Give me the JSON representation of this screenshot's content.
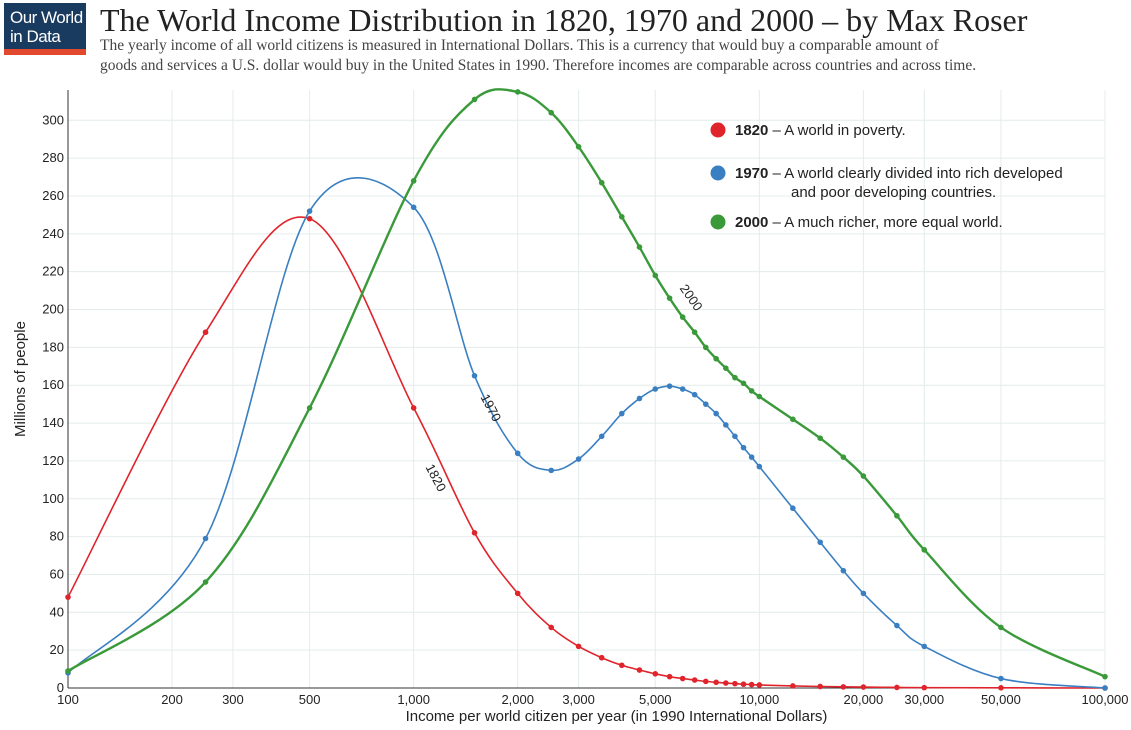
{
  "logo": {
    "line1": "Our World",
    "line2": "in Data"
  },
  "header": {
    "title": "The World Income Distribution in 1820, 1970 and 2000 – by Max Roser",
    "subtitle_line1": "The yearly income of all world citizens is measured in International Dollars. This is a currency that would buy a comparable amount of",
    "subtitle_line2": "goods and services a U.S. dollar would buy in the United States in 1990. Therefore incomes are comparable across countries and across time."
  },
  "colors": {
    "s1820": "#e0242b",
    "s1970": "#3a7fc1",
    "s2000": "#3a9a3a",
    "grid": "#e4ecec",
    "axis": "#333333"
  },
  "chart_data": {
    "type": "line",
    "title": "The World Income Distribution in 1820, 1970 and 2000",
    "xlabel": "Income per world citizen per year (in 1990 International Dollars)",
    "ylabel": "Millions of people",
    "xscale": "log",
    "xlim": [
      100,
      100000
    ],
    "ylim": [
      0,
      316
    ],
    "grid": true,
    "xticks": [
      {
        "value": 100,
        "label": "100"
      },
      {
        "value": 200,
        "label": "200"
      },
      {
        "value": 300,
        "label": "300"
      },
      {
        "value": 500,
        "label": "500"
      },
      {
        "value": 1000,
        "label": "1,000"
      },
      {
        "value": 2000,
        "label": "2,000"
      },
      {
        "value": 3000,
        "label": "3,000"
      },
      {
        "value": 5000,
        "label": "5,000"
      },
      {
        "value": 10000,
        "label": "10,000"
      },
      {
        "value": 20000,
        "label": "20,000"
      },
      {
        "value": 30000,
        "label": "30,000"
      },
      {
        "value": 50000,
        "label": "50,000"
      },
      {
        "value": 100000,
        "label": "100,000"
      }
    ],
    "yticks": [
      0,
      20,
      40,
      60,
      80,
      100,
      120,
      140,
      160,
      180,
      200,
      220,
      240,
      260,
      280,
      300
    ],
    "legend_position": "top-right",
    "series": [
      {
        "name": "1820",
        "key": "s1820",
        "legend_year": "1820",
        "legend_text": " – A world in poverty.",
        "legend_text2": "",
        "curve_label": "1820",
        "points": [
          [
            100,
            48
          ],
          [
            250,
            188
          ],
          [
            500,
            248
          ],
          [
            1000,
            148
          ],
          [
            1500,
            82
          ],
          [
            2000,
            50
          ],
          [
            2500,
            32
          ],
          [
            3000,
            22
          ],
          [
            3500,
            16
          ],
          [
            4000,
            12
          ],
          [
            4500,
            9.5
          ],
          [
            5000,
            7.5
          ],
          [
            5500,
            6
          ],
          [
            6000,
            5
          ],
          [
            6500,
            4.2
          ],
          [
            7000,
            3.5
          ],
          [
            7500,
            3
          ],
          [
            8000,
            2.6
          ],
          [
            8500,
            2.3
          ],
          [
            9000,
            2
          ],
          [
            9500,
            1.8
          ],
          [
            10000,
            1.6
          ],
          [
            12500,
            1.1
          ],
          [
            15000,
            0.8
          ],
          [
            17500,
            0.6
          ],
          [
            20000,
            0.5
          ],
          [
            25000,
            0.3
          ],
          [
            30000,
            0.2
          ],
          [
            50000,
            0.1
          ],
          [
            100000,
            0
          ]
        ]
      },
      {
        "name": "1970",
        "key": "s1970",
        "legend_year": "1970",
        "legend_text": " – A world clearly divided into rich developed",
        "legend_text2": "and poor developing countries.",
        "curve_label": "1970",
        "points": [
          [
            100,
            8
          ],
          [
            250,
            79
          ],
          [
            500,
            252
          ],
          [
            1000,
            254
          ],
          [
            1500,
            165
          ],
          [
            2000,
            124
          ],
          [
            2500,
            115
          ],
          [
            3000,
            121
          ],
          [
            3500,
            133
          ],
          [
            4000,
            145
          ],
          [
            4500,
            153
          ],
          [
            5000,
            158
          ],
          [
            5500,
            159.5
          ],
          [
            6000,
            158
          ],
          [
            6500,
            155
          ],
          [
            7000,
            150
          ],
          [
            7500,
            145
          ],
          [
            8000,
            139
          ],
          [
            8500,
            133
          ],
          [
            9000,
            127
          ],
          [
            9500,
            122
          ],
          [
            10000,
            117
          ],
          [
            12500,
            95
          ],
          [
            15000,
            77
          ],
          [
            17500,
            62
          ],
          [
            20000,
            50
          ],
          [
            25000,
            33
          ],
          [
            30000,
            22
          ],
          [
            50000,
            5
          ],
          [
            100000,
            0
          ]
        ]
      },
      {
        "name": "2000",
        "key": "s2000",
        "legend_year": "2000",
        "legend_text": " – A much richer, more equal world.",
        "legend_text2": "",
        "curve_label": "2000",
        "points": [
          [
            100,
            9
          ],
          [
            250,
            56
          ],
          [
            500,
            148
          ],
          [
            1000,
            268
          ],
          [
            1500,
            311
          ],
          [
            2000,
            315
          ],
          [
            2500,
            304
          ],
          [
            3000,
            286
          ],
          [
            3500,
            267
          ],
          [
            4000,
            249
          ],
          [
            4500,
            233
          ],
          [
            5000,
            218
          ],
          [
            5500,
            206
          ],
          [
            6000,
            196
          ],
          [
            6500,
            188
          ],
          [
            7000,
            180
          ],
          [
            7500,
            174
          ],
          [
            8000,
            169
          ],
          [
            8500,
            164
          ],
          [
            9000,
            161
          ],
          [
            9500,
            157
          ],
          [
            10000,
            154
          ],
          [
            12500,
            142
          ],
          [
            15000,
            132
          ],
          [
            17500,
            122
          ],
          [
            20000,
            112
          ],
          [
            25000,
            91
          ],
          [
            30000,
            73
          ],
          [
            50000,
            32
          ],
          [
            100000,
            6
          ]
        ]
      }
    ]
  }
}
